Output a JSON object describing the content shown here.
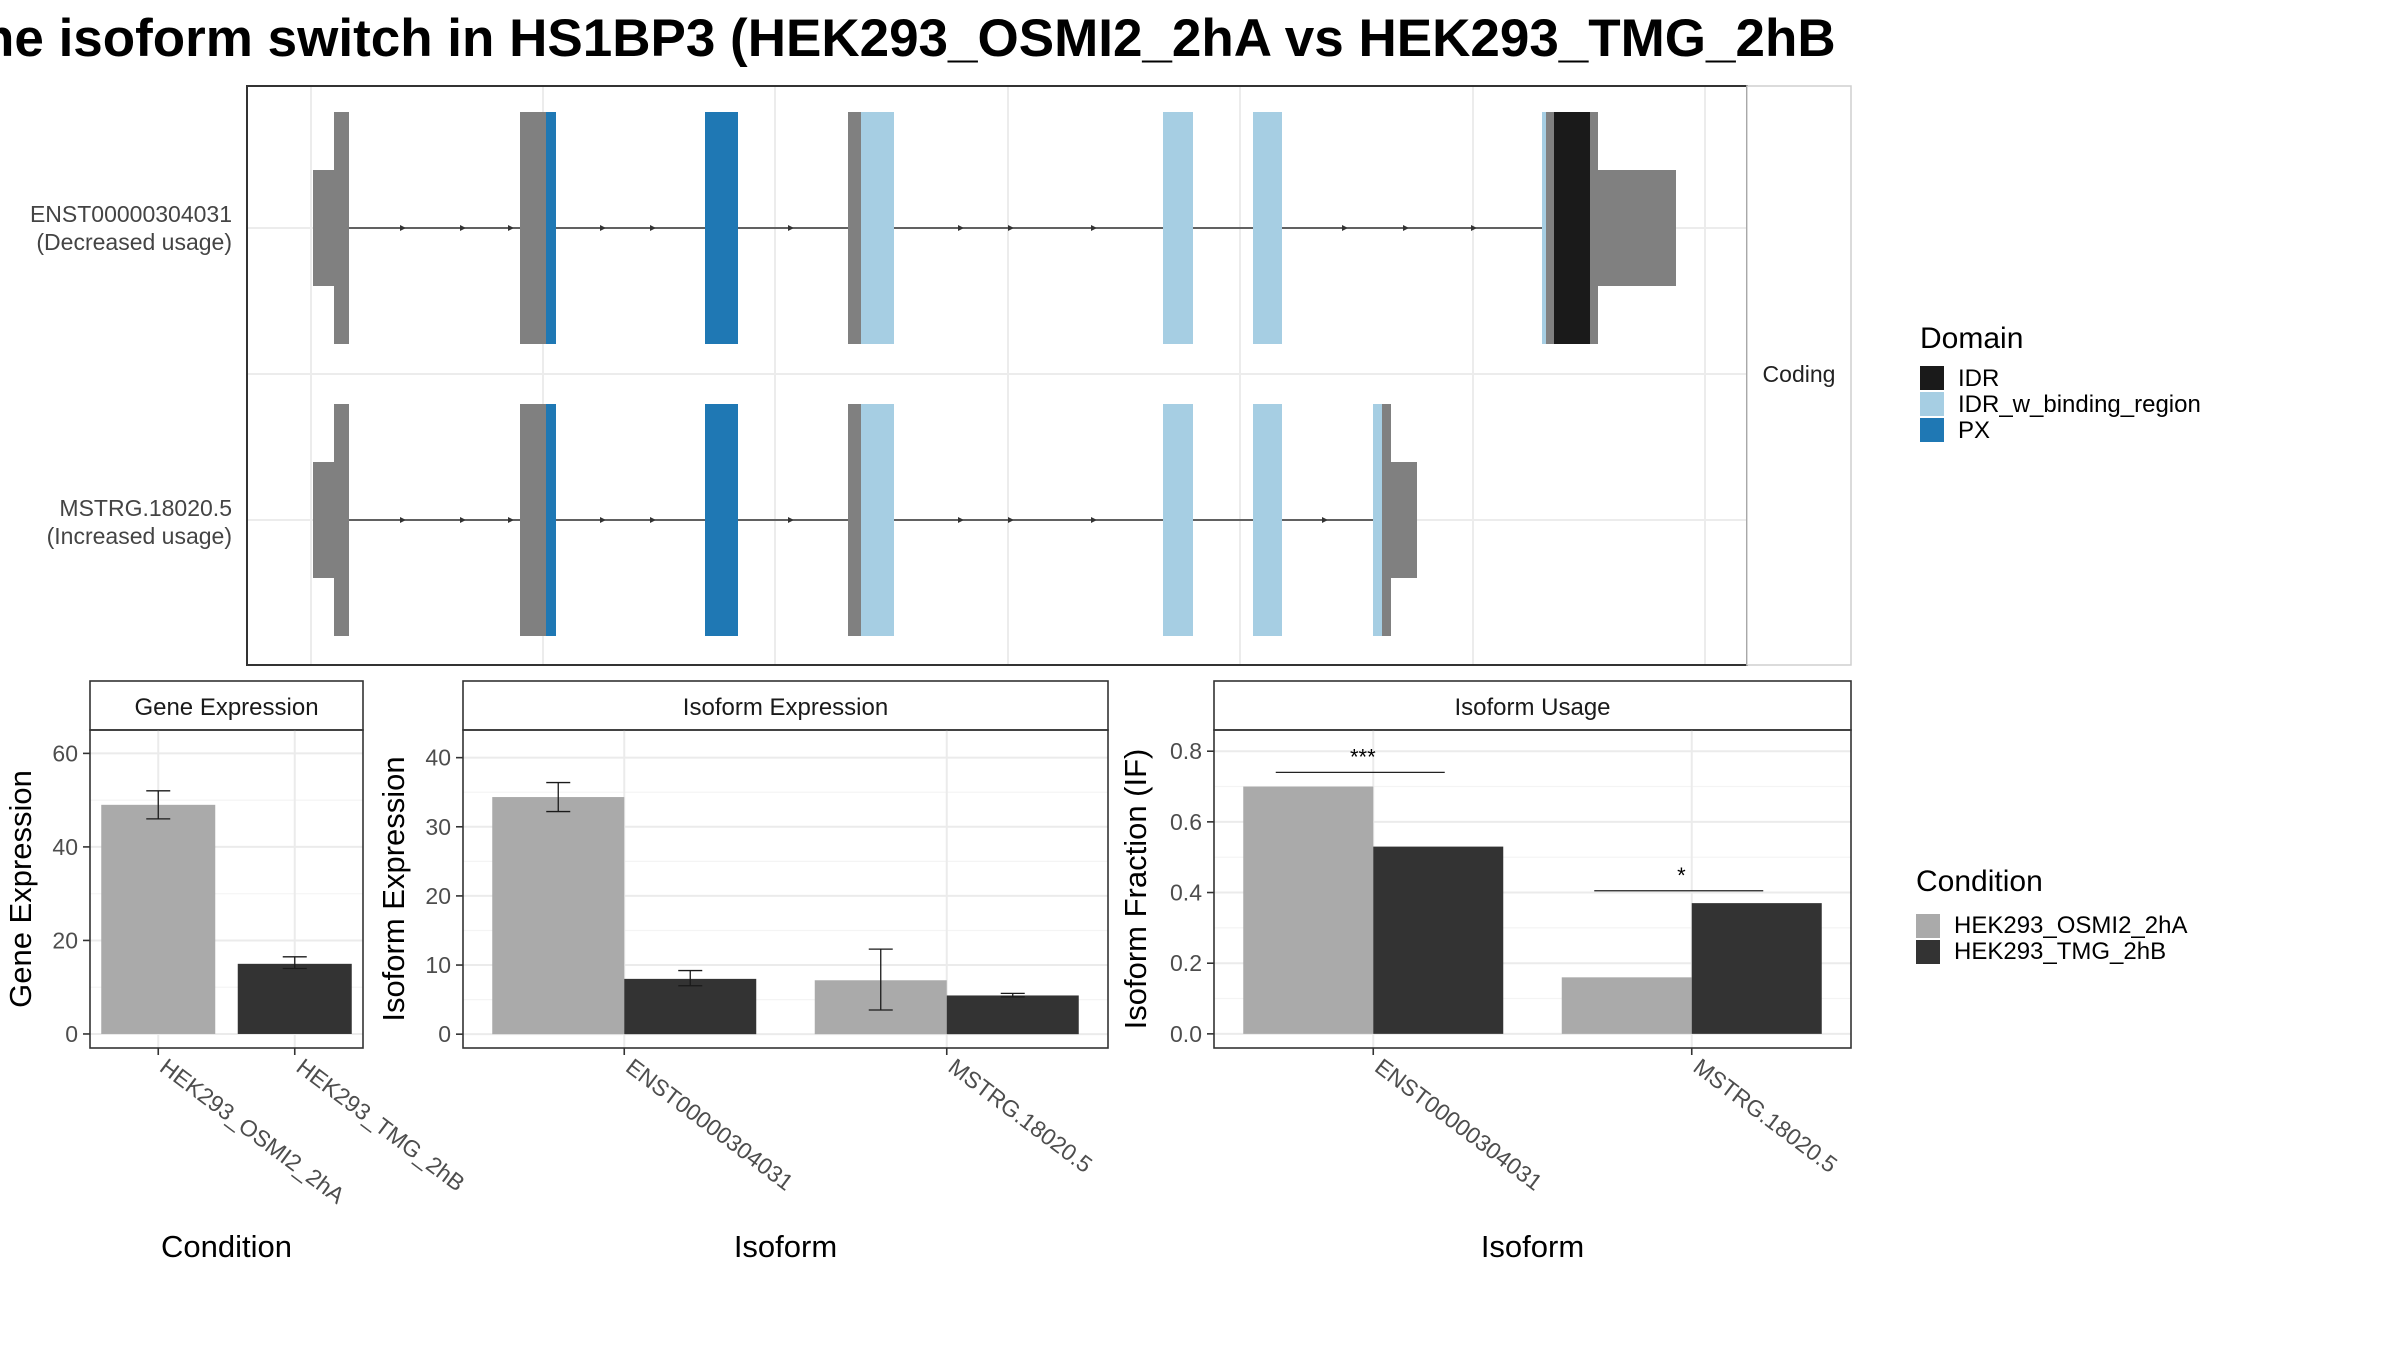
{
  "title": "he isoform switch in HS1BP3 (HEK293_OSMI2_2hA vs HEK293_TMG_2hB",
  "colors": {
    "IDR": "#1a1a1a",
    "IDR_w_binding_region": "#a6cee3",
    "PX": "#1f78b4",
    "noncoding": "#808080",
    "HEK293_OSMI2_2hA": "#aaaaaa",
    "HEK293_TMG_2hB": "#333333"
  },
  "structure": {
    "strip_label": "Coding",
    "transcripts": [
      {
        "name": "ENST00000304031",
        "usage": "(Decreased usage)"
      },
      {
        "name": "MSTRG.18020.5",
        "usage": "(Increased usage)"
      }
    ]
  },
  "domain_legend": {
    "title": "Domain",
    "entries": [
      "IDR",
      "IDR_w_binding_region",
      "PX"
    ]
  },
  "condition_legend": {
    "title": "Condition",
    "entries": [
      "HEK293_OSMI2_2hA",
      "HEK293_TMG_2hB"
    ]
  },
  "chart_data": [
    {
      "type": "bar",
      "title": "Gene Expression",
      "xlabel": "Condition",
      "ylabel": "Gene Expression",
      "ylim": [
        -3,
        65
      ],
      "yticks": [
        0,
        20,
        40,
        60
      ],
      "categories": [
        "HEK293_OSMI2_2hA",
        "HEK293_TMG_2hB"
      ],
      "values": [
        49,
        15
      ],
      "errors": [
        [
          46,
          52
        ],
        [
          14,
          16.5
        ]
      ]
    },
    {
      "type": "bar",
      "title": "Isoform Expression",
      "xlabel": "Isoform",
      "ylabel": "Isoform Expression",
      "ylim": [
        -2,
        44
      ],
      "yticks": [
        0,
        10,
        20,
        30,
        40
      ],
      "categories": [
        "ENST00000304031",
        "MSTRG.18020.5"
      ],
      "series": [
        {
          "name": "HEK293_OSMI2_2hA",
          "values": [
            34.3,
            7.8
          ],
          "errors": [
            [
              32.2,
              36.4
            ],
            [
              3.5,
              12.3
            ]
          ]
        },
        {
          "name": "HEK293_TMG_2hB",
          "values": [
            8.0,
            5.6
          ],
          "errors": [
            [
              7.0,
              9.2
            ],
            [
              5.4,
              5.9
            ]
          ]
        }
      ]
    },
    {
      "type": "bar",
      "title": "Isoform Usage",
      "xlabel": "Isoform",
      "ylabel": "Isoform Fraction (IF)",
      "ylim": [
        -0.04,
        0.86
      ],
      "yticks": [
        "0.0",
        "0.2",
        "0.4",
        "0.6",
        "0.8"
      ],
      "categories": [
        "ENST00000304031",
        "MSTRG.18020.5"
      ],
      "series": [
        {
          "name": "HEK293_OSMI2_2hA",
          "values": [
            0.7,
            0.16
          ]
        },
        {
          "name": "HEK293_TMG_2hB",
          "values": [
            0.53,
            0.37
          ]
        }
      ],
      "significance": [
        {
          "category": "ENST00000304031",
          "label": "***",
          "y": 0.74
        },
        {
          "category": "MSTRG.18020.5",
          "label": "*",
          "y": 0.405
        }
      ]
    }
  ]
}
